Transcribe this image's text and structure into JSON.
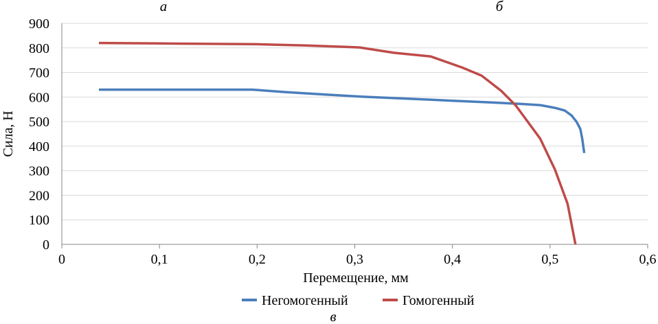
{
  "panel_labels": {
    "a": "а",
    "b": "б",
    "c": "в"
  },
  "chart_data": {
    "type": "line",
    "title": "",
    "xlabel": "Перемещение, мм",
    "ylabel": "Сила, Н",
    "xlim": [
      0,
      0.6
    ],
    "ylim": [
      0,
      900
    ],
    "x_ticks": [
      "0",
      "0,1",
      "0,2",
      "0,3",
      "0,4",
      "0,5",
      "0,6"
    ],
    "y_ticks": [
      "0",
      "100",
      "200",
      "300",
      "400",
      "500",
      "600",
      "700",
      "800",
      "900"
    ],
    "grid": "horizontal",
    "legend_position": "bottom",
    "series": [
      {
        "name": "Негомогенный",
        "color": "#4a7ebb",
        "x": [
          0.038,
          0.1,
          0.15,
          0.195,
          0.23,
          0.27,
          0.31,
          0.35,
          0.4,
          0.44,
          0.47,
          0.49,
          0.505,
          0.515,
          0.522,
          0.527,
          0.531,
          0.533,
          0.535
        ],
        "y": [
          630,
          630,
          630,
          630,
          620,
          610,
          601,
          594,
          585,
          578,
          572,
          567,
          556,
          545,
          525,
          500,
          470,
          430,
          372
        ]
      },
      {
        "name": "Гомогенный",
        "color": "#be4b48",
        "x": [
          0.038,
          0.1,
          0.2,
          0.25,
          0.305,
          0.34,
          0.378,
          0.41,
          0.43,
          0.45,
          0.465,
          0.49,
          0.505,
          0.518,
          0.526
        ],
        "y": [
          820,
          818,
          815,
          810,
          802,
          780,
          765,
          720,
          687,
          625,
          565,
          430,
          305,
          165,
          0
        ]
      }
    ]
  }
}
